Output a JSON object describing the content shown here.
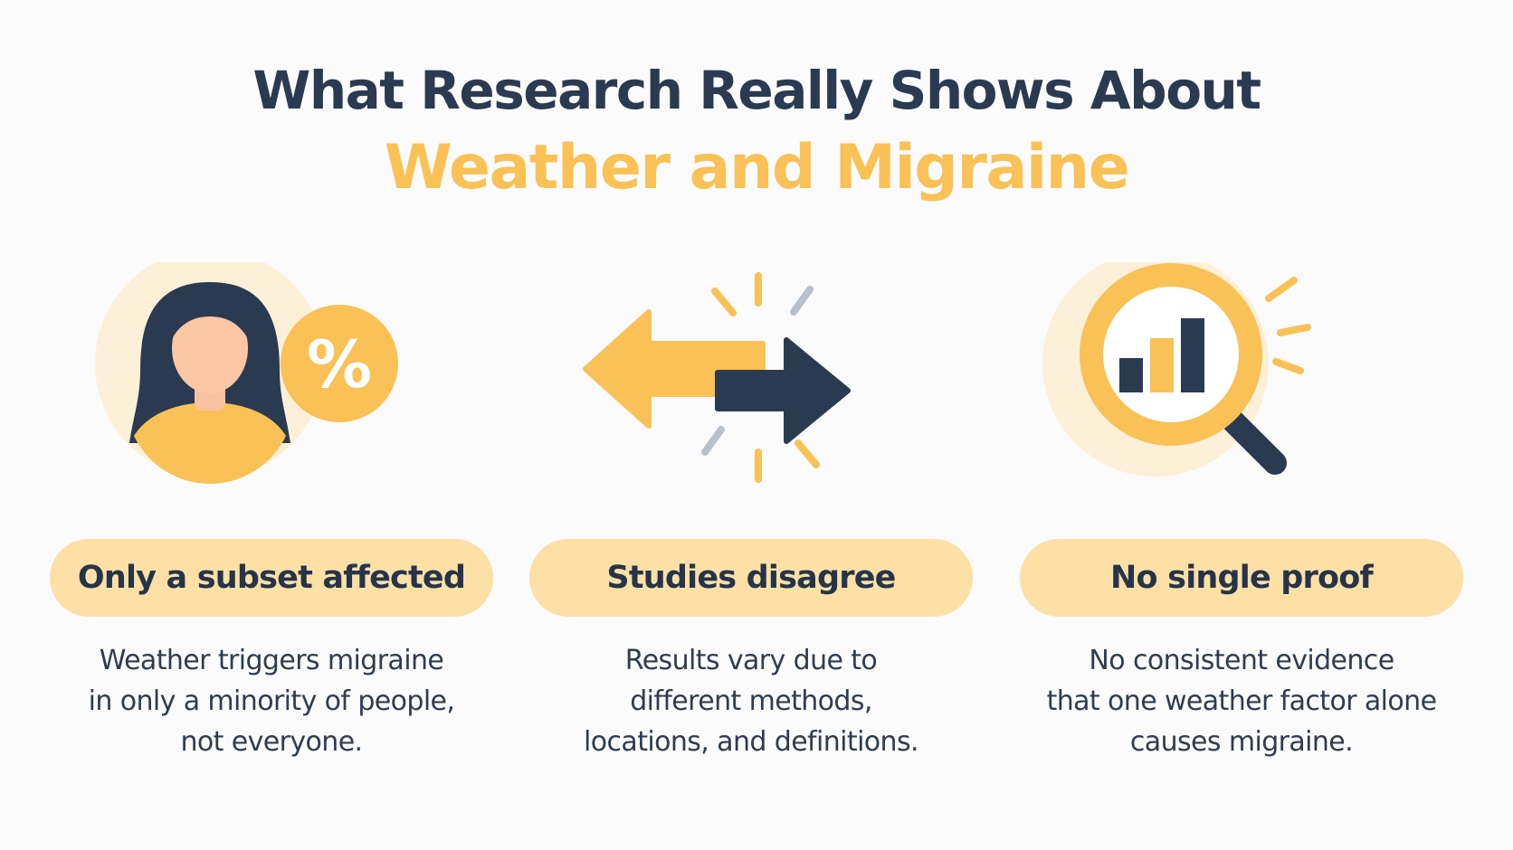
{
  "title": {
    "line1": "What Research Really Shows About",
    "line2": "Weather and Migraine"
  },
  "colors": {
    "navy": "#2a3a51",
    "accent": "#f9c156",
    "pill": "#fde0a6",
    "circle": "#fdf0d8",
    "grey": "#b8c0cb"
  },
  "cards": [
    {
      "icon": "person-percent-icon",
      "badge": "%",
      "label": "Only a subset affected",
      "lines": [
        "Weather triggers migraine",
        "in only a minority of people,",
        "not everyone."
      ]
    },
    {
      "icon": "opposing-arrows-icon",
      "label": "Studies disagree",
      "lines": [
        "Results vary due to",
        "different methods,",
        "locations, and definitions."
      ]
    },
    {
      "icon": "magnifier-chart-icon",
      "label": "No single proof",
      "lines": [
        "No consistent evidence",
        "that one weather factor alone",
        "causes migraine."
      ]
    }
  ]
}
